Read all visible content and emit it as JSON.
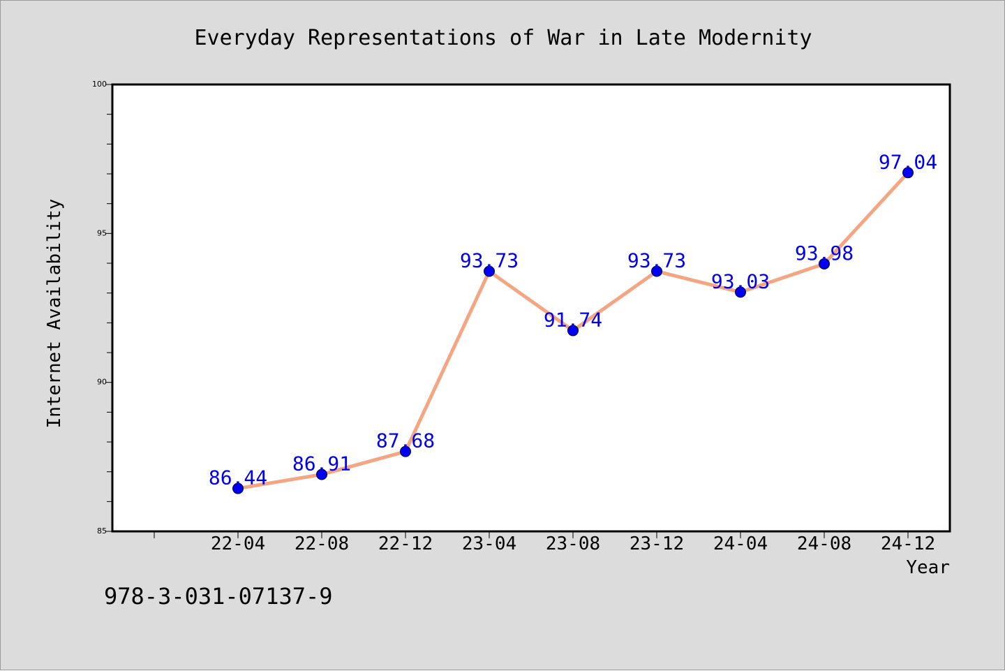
{
  "chart_data": {
    "type": "line",
    "title": "Everyday Representations of War in Late Modernity",
    "xlabel": "Year",
    "ylabel": "Internet Availability",
    "categories": [
      "22-04",
      "22-08",
      "22-12",
      "23-04",
      "23-08",
      "23-12",
      "24-04",
      "24-08",
      "24-12"
    ],
    "series": [
      {
        "values": [
          86.44,
          86.91,
          87.68,
          93.73,
          91.74,
          93.73,
          93.03,
          93.98,
          97.04
        ]
      }
    ],
    "data_labels": [
      "86.44",
      "86.91",
      "87.68",
      "93.73",
      "91.74",
      "93.73",
      "93.03",
      "93.98",
      "97.04"
    ],
    "ylim": [
      85,
      100
    ],
    "yticks": [
      "85",
      "90",
      "95",
      "100"
    ],
    "grid": false,
    "line_color": "#f4a582",
    "marker_color": "#0000ee",
    "label_color": "#0000ee"
  },
  "footer_text": "978-3-031-07137-9",
  "background_color": "#dcdcdc",
  "plot_background_color": "#ffffff"
}
